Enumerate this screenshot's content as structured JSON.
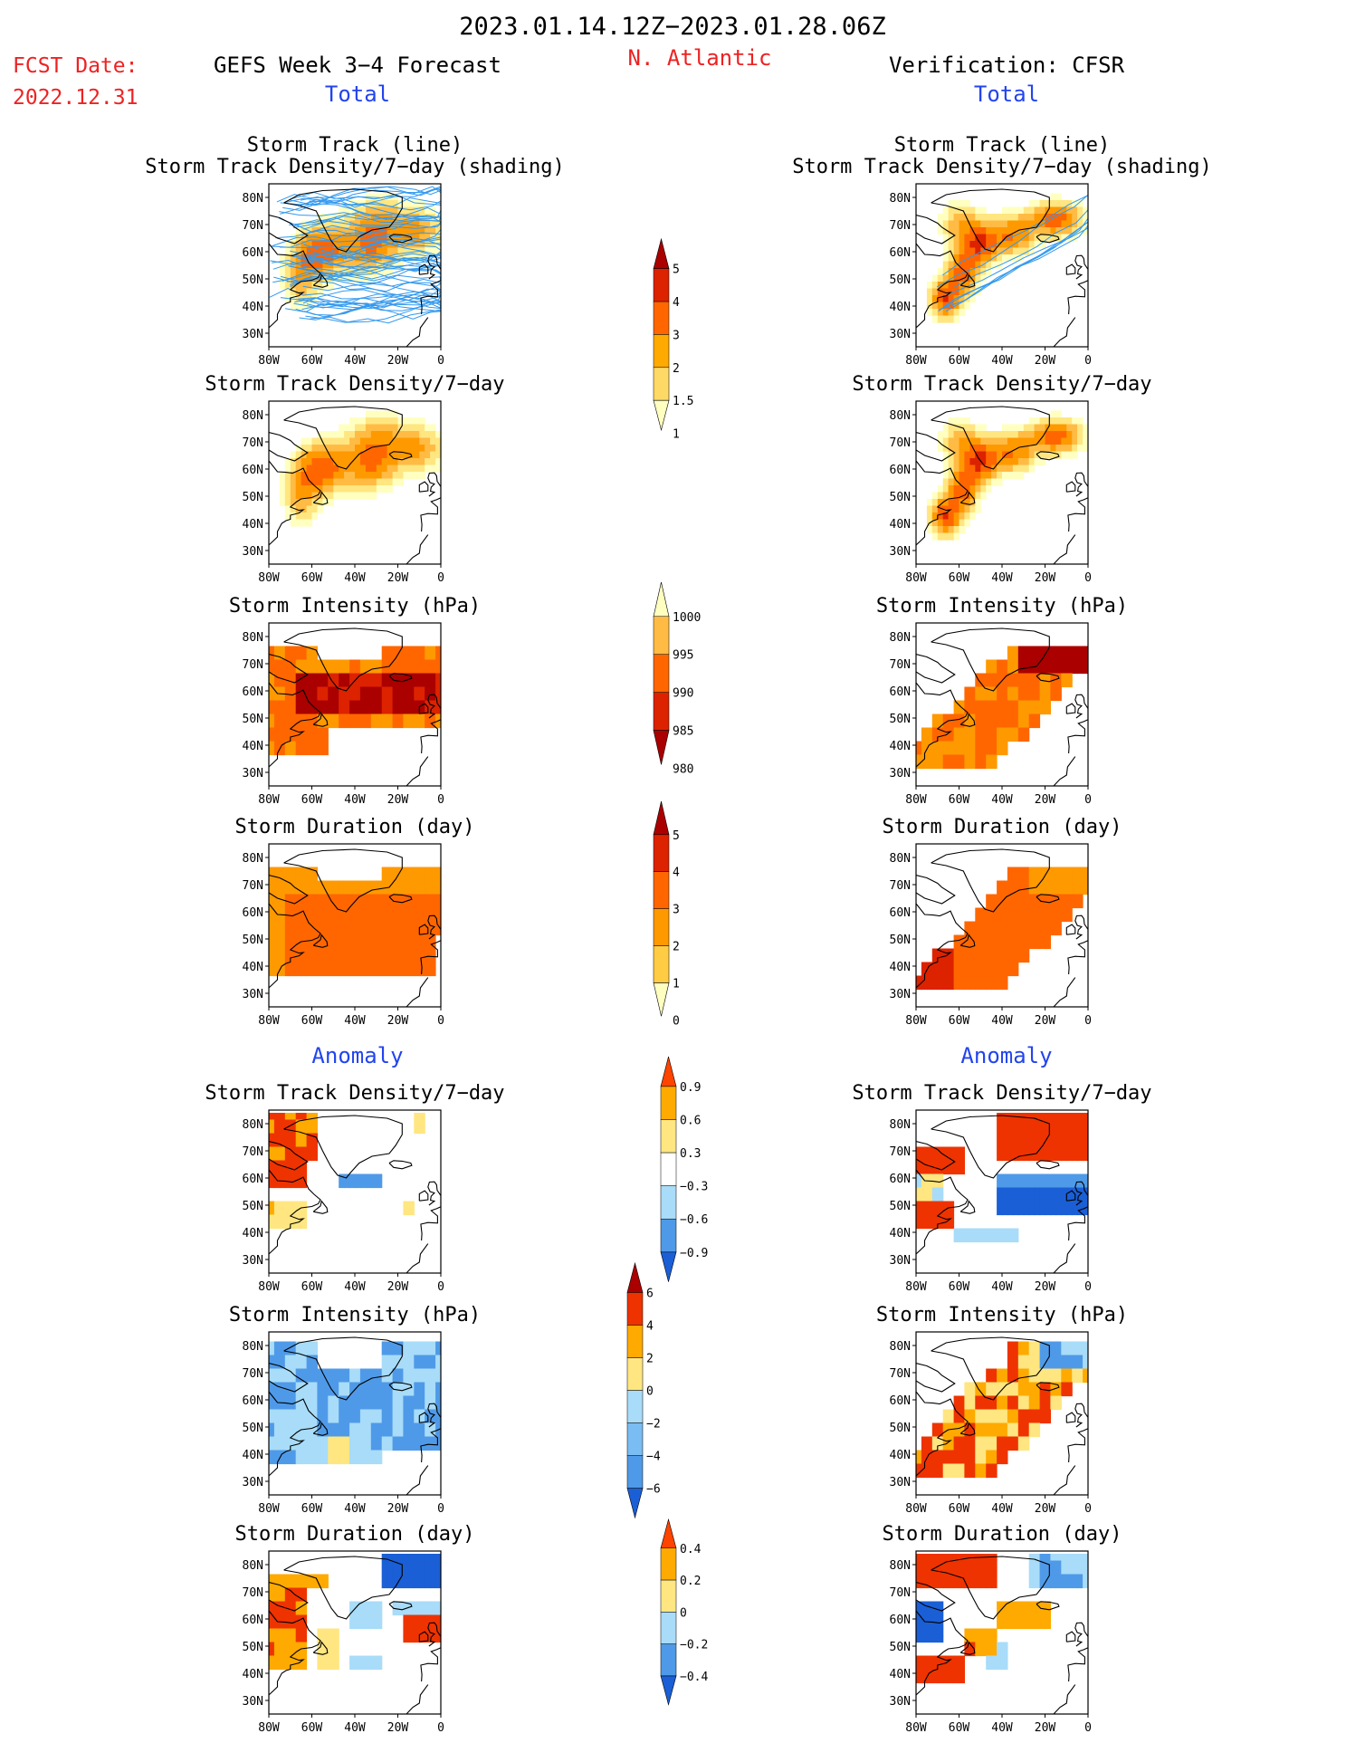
{
  "header": {
    "period": "2023.01.14.12Z−2023.01.28.06Z",
    "fcst_label": "FCST Date:",
    "fcst_date": "2022.12.31",
    "forecast_title": "GEFS Week 3−4 Forecast",
    "region": "N. Atlantic",
    "verification_title": "Verification: CFSR"
  },
  "sections": {
    "total": "Total",
    "anomaly": "Anomaly"
  },
  "axes": {
    "lat_ticks": [
      "80N",
      "70N",
      "60N",
      "50N",
      "40N",
      "30N"
    ],
    "lon_ticks": [
      "80W",
      "60W",
      "40W",
      "20W",
      "0"
    ]
  },
  "colors": {
    "title_red": "#ee2222",
    "label_blue": "#2244ee",
    "track_line": "#3399ee",
    "warm_scale": [
      "#ffffc0",
      "#ffe680",
      "#ffbb44",
      "#ff9900",
      "#ff6600",
      "#dd2200",
      "#aa0000"
    ],
    "anomaly_scale": [
      "#1a5fd6",
      "#4f9ae8",
      "#a8dcf8",
      "#ffffff",
      "#ffe680",
      "#ffaa00",
      "#ee3300"
    ]
  },
  "rows": [
    {
      "title1": "Storm Track (line)",
      "title2": "Storm Track Density/7−day (shading)",
      "section": "total",
      "field": "track_density_with_tracks"
    },
    {
      "title1": "Storm Track Density/7−day",
      "title2": "",
      "section": "total",
      "field": "track_density"
    },
    {
      "title1": "Storm Intensity (hPa)",
      "title2": "",
      "section": "total",
      "field": "intensity"
    },
    {
      "title1": "Storm Duration (day)",
      "title2": "",
      "section": "total",
      "field": "duration"
    },
    {
      "title1": "Storm Track Density/7−day",
      "title2": "",
      "section": "anomaly",
      "field": "track_density_anomaly"
    },
    {
      "title1": "Storm Intensity (hPa)",
      "title2": "",
      "section": "anomaly",
      "field": "intensity_anomaly"
    },
    {
      "title1": "Storm Duration (day)",
      "title2": "",
      "section": "anomaly",
      "field": "duration_anomaly"
    }
  ],
  "colorbars": [
    {
      "name": "track-density-colorbar",
      "labels": [
        "5",
        "4",
        "3",
        "2",
        "1.5",
        "1"
      ],
      "colors": [
        "#aa0000",
        "#dd2200",
        "#ff6600",
        "#ffaa00",
        "#ffd966",
        "#ffffc0"
      ]
    },
    {
      "name": "intensity-colorbar",
      "labels": [
        "1000",
        "995",
        "990",
        "985",
        "980"
      ],
      "colors": [
        "#ffffc0",
        "#ffbb44",
        "#ff6600",
        "#dd2200",
        "#aa0000"
      ]
    },
    {
      "name": "duration-colorbar",
      "labels": [
        "5",
        "4",
        "3",
        "2",
        "1",
        "0"
      ],
      "colors": [
        "#aa0000",
        "#dd2200",
        "#ff6600",
        "#ff9900",
        "#ffcc44",
        "#ffffc0"
      ]
    },
    {
      "name": "density-anomaly-colorbar",
      "labels": [
        "0.9",
        "0.6",
        "0.3",
        "−0.3",
        "−0.6",
        "−0.9"
      ],
      "colors": [
        "#ff4400",
        "#ffaa00",
        "#ffe680",
        "#ffffff",
        "#a8dcf8",
        "#4f9ae8",
        "#1a5fd6"
      ]
    },
    {
      "name": "intensity-anomaly-colorbar",
      "labels": [
        "6",
        "4",
        "2",
        "0",
        "−2",
        "−4",
        "−6"
      ],
      "colors": [
        "#aa0000",
        "#ee3300",
        "#ffaa00",
        "#ffe680",
        "#a8dcf8",
        "#79bdf2",
        "#4f9ae8",
        "#1a5fd6"
      ]
    },
    {
      "name": "duration-anomaly-colorbar",
      "labels": [
        "0.4",
        "0.2",
        "0",
        "−0.2",
        "−0.4"
      ],
      "colors": [
        "#ff4400",
        "#ffaa00",
        "#ffe680",
        "#a8dcf8",
        "#4f9ae8",
        "#1a5fd6"
      ]
    }
  ]
}
